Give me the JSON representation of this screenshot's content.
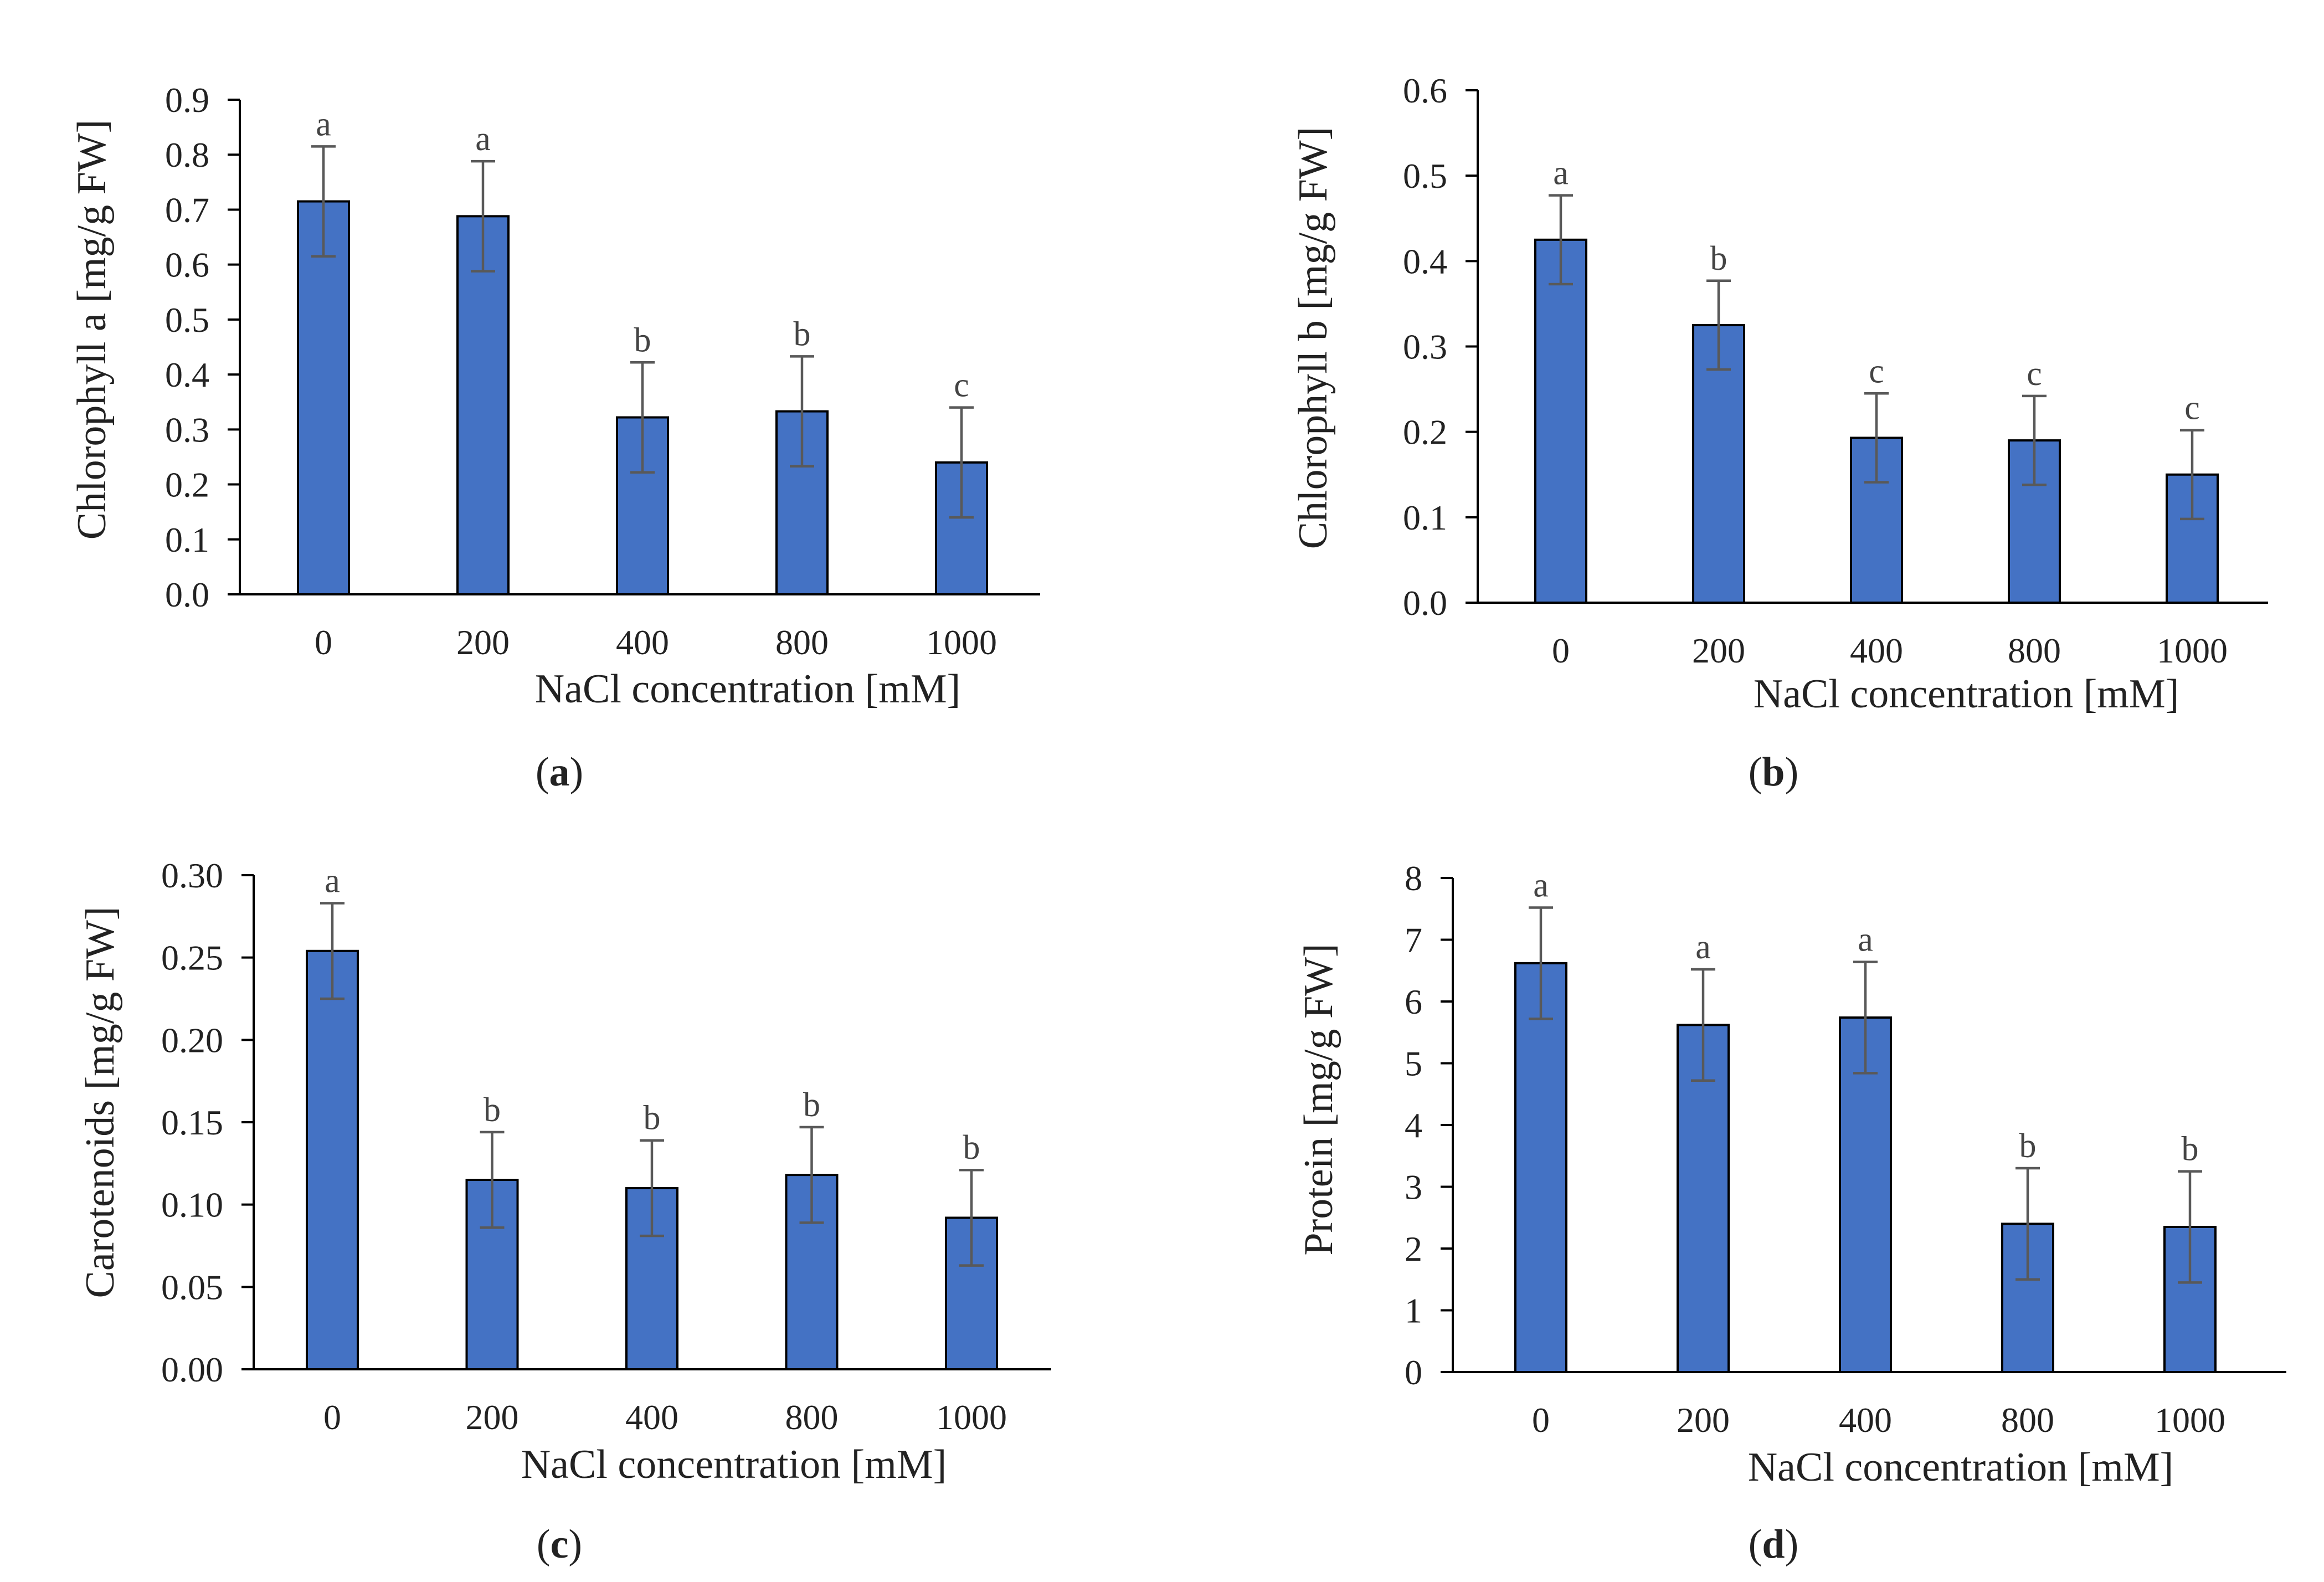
{
  "figure": {
    "xlabel": "NaCl concentration [mM]",
    "captions": [
      {
        "open": "(",
        "letter": "a",
        "close": ")"
      },
      {
        "open": "(",
        "letter": "b",
        "close": ")"
      },
      {
        "open": "(",
        "letter": "c",
        "close": ")"
      },
      {
        "open": "(",
        "letter": "d",
        "close": ")"
      }
    ]
  },
  "colors": {
    "bar": "#4472C4",
    "error_bar": "#595959",
    "axis": "#000000"
  },
  "chart_data": [
    {
      "panel": "a",
      "type": "bar",
      "title": "",
      "xlabel": "NaCl concentration [mM]",
      "ylabel": "Chlorophyll a [mg/g FW]",
      "categories": [
        "0",
        "200",
        "400",
        "800",
        "1000"
      ],
      "values": [
        0.715,
        0.688,
        0.322,
        0.333,
        0.24
      ],
      "errors": [
        0.1,
        0.1,
        0.1,
        0.1,
        0.1
      ],
      "significance": [
        "a",
        "a",
        "b",
        "b",
        "c"
      ],
      "ylim": [
        0,
        0.9
      ],
      "yticks": [
        "0.0",
        "0.1",
        "0.2",
        "0.3",
        "0.4",
        "0.5",
        "0.6",
        "0.7",
        "0.8",
        "0.9"
      ],
      "grid": false
    },
    {
      "panel": "b",
      "type": "bar",
      "title": "",
      "xlabel": "NaCl concentration [mM]",
      "ylabel": "Chlorophyll b [mg/g FW]",
      "categories": [
        "0",
        "200",
        "400",
        "800",
        "1000"
      ],
      "values": [
        0.425,
        0.325,
        0.193,
        0.19,
        0.15
      ],
      "errors": [
        0.052,
        0.052,
        0.052,
        0.052,
        0.052
      ],
      "significance": [
        "a",
        "b",
        "c",
        "c",
        "c"
      ],
      "ylim": [
        0,
        0.6
      ],
      "yticks": [
        "0.0",
        "0.1",
        "0.2",
        "0.3",
        "0.4",
        "0.5",
        "0.6"
      ],
      "grid": false
    },
    {
      "panel": "c",
      "type": "bar",
      "title": "",
      "xlabel": "NaCl concentration [mM]",
      "ylabel": "Carotenoids [mg/g FW]",
      "categories": [
        "0",
        "200",
        "400",
        "800",
        "1000"
      ],
      "values": [
        0.254,
        0.115,
        0.11,
        0.118,
        0.092
      ],
      "errors": [
        0.029,
        0.029,
        0.029,
        0.029,
        0.029
      ],
      "significance": [
        "a",
        "b",
        "b",
        "b",
        "b"
      ],
      "ylim": [
        0,
        0.3
      ],
      "yticks": [
        "0.00",
        "0.05",
        "0.10",
        "0.15",
        "0.20",
        "0.25",
        "0.30"
      ],
      "grid": false
    },
    {
      "panel": "d",
      "type": "bar",
      "title": "",
      "xlabel": "NaCl concentration [mM]",
      "ylabel": "Protein [mg/g FW]",
      "categories": [
        "0",
        "200",
        "400",
        "800",
        "1000"
      ],
      "values": [
        6.62,
        5.62,
        5.74,
        2.4,
        2.35
      ],
      "errors": [
        0.9,
        0.9,
        0.9,
        0.9,
        0.9
      ],
      "significance": [
        "a",
        "a",
        "a",
        "b",
        "b"
      ],
      "ylim": [
        0,
        8
      ],
      "yticks": [
        "0",
        "1",
        "2",
        "3",
        "4",
        "5",
        "6",
        "7",
        "8"
      ],
      "grid": false
    }
  ]
}
